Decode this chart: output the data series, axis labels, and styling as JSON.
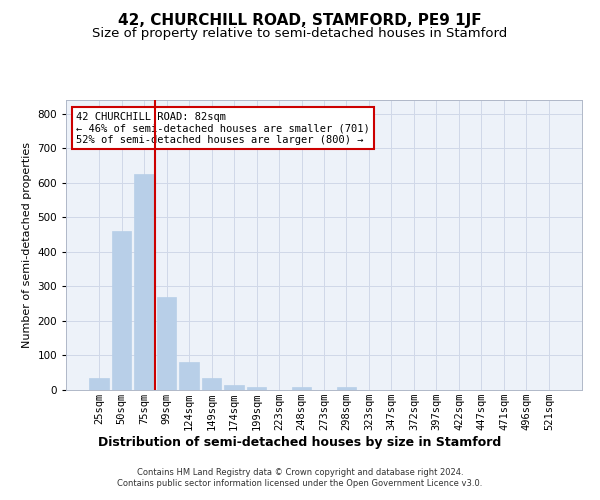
{
  "title": "42, CHURCHILL ROAD, STAMFORD, PE9 1JF",
  "subtitle": "Size of property relative to semi-detached houses in Stamford",
  "xlabel": "Distribution of semi-detached houses by size in Stamford",
  "ylabel": "Number of semi-detached properties",
  "categories": [
    "25sqm",
    "50sqm",
    "75sqm",
    "99sqm",
    "124sqm",
    "149sqm",
    "174sqm",
    "199sqm",
    "223sqm",
    "248sqm",
    "273sqm",
    "298sqm",
    "323sqm",
    "347sqm",
    "372sqm",
    "397sqm",
    "422sqm",
    "447sqm",
    "471sqm",
    "496sqm",
    "521sqm"
  ],
  "values": [
    35,
    462,
    625,
    270,
    82,
    35,
    15,
    10,
    0,
    10,
    0,
    10,
    0,
    0,
    0,
    0,
    0,
    0,
    0,
    0,
    0
  ],
  "bar_color": "#b8cfe8",
  "bar_edgecolor": "#b8cfe8",
  "vline_x": 2.5,
  "vline_color": "#cc0000",
  "annotation_text": "42 CHURCHILL ROAD: 82sqm\n← 46% of semi-detached houses are smaller (701)\n52% of semi-detached houses are larger (800) →",
  "annotation_box_color": "#ffffff",
  "annotation_box_edgecolor": "#cc0000",
  "ylim": [
    0,
    840
  ],
  "yticks": [
    0,
    100,
    200,
    300,
    400,
    500,
    600,
    700,
    800
  ],
  "grid_color": "#d0d8e8",
  "background_color": "#edf2f9",
  "footer": "Contains HM Land Registry data © Crown copyright and database right 2024.\nContains public sector information licensed under the Open Government Licence v3.0.",
  "title_fontsize": 11,
  "subtitle_fontsize": 9.5,
  "xlabel_fontsize": 9,
  "ylabel_fontsize": 8,
  "tick_fontsize": 7.5,
  "annotation_fontsize": 7.5,
  "footer_fontsize": 6
}
